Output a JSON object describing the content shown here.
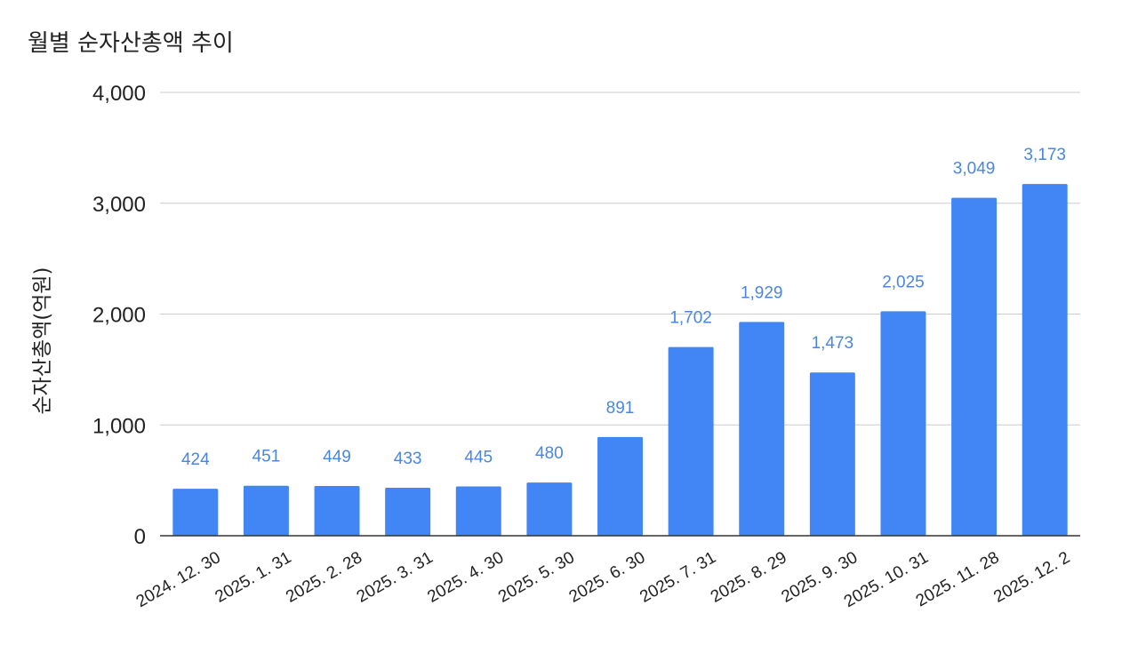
{
  "chart_data": {
    "type": "bar",
    "title": "월별 순자산총액 추이",
    "xlabel": "",
    "ylabel": "순자산총액(억원)",
    "categories": [
      "2024. 12. 30",
      "2025. 1. 31",
      "2025. 2. 28",
      "2025. 3. 31",
      "2025. 4. 30",
      "2025. 5. 30",
      "2025. 6. 30",
      "2025. 7. 31",
      "2025. 8. 29",
      "2025. 9. 30",
      "2025. 10. 31",
      "2025. 11. 28",
      "2025. 12. 2"
    ],
    "values": [
      424,
      451,
      449,
      433,
      445,
      480,
      891,
      1702,
      1929,
      1473,
      2025,
      3049,
      3173
    ],
    "data_labels": [
      "424",
      "451",
      "449",
      "433",
      "445",
      "480",
      "891",
      "1,702",
      "1,929",
      "1,473",
      "2,025",
      "3,049",
      "3,173"
    ],
    "ylim": [
      0,
      4000
    ],
    "yticks": [
      0,
      1000,
      2000,
      3000,
      4000
    ],
    "ytick_labels": [
      "0",
      "1,000",
      "2,000",
      "3,000",
      "4,000"
    ],
    "grid": true,
    "legend": "none",
    "colors": {
      "bar": "#4285f4",
      "data_label": "#4a86e0",
      "grid": "#cccccc",
      "axis": "#333333",
      "text": "#222222"
    }
  }
}
